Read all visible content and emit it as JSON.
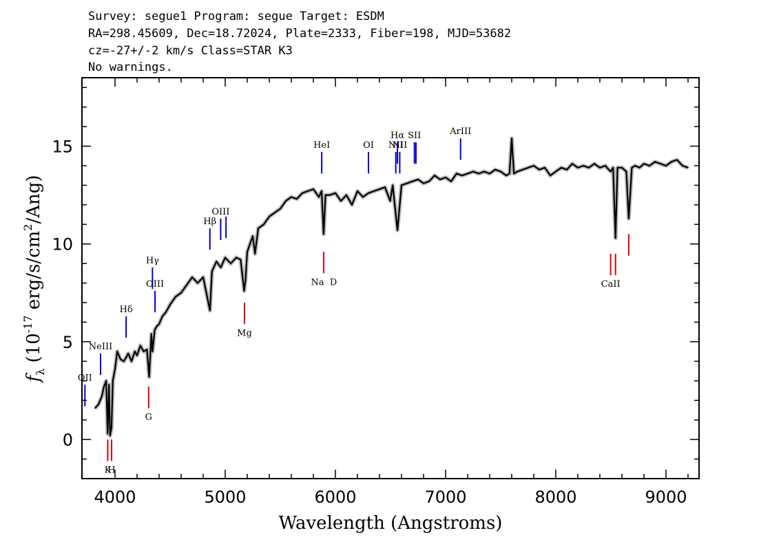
{
  "header": {
    "line1": "Survey: segue1 Program: segue Target: ESDM",
    "line2": "RA=298.45609, Dec=18.72024, Plate=2333, Fiber=198, MJD=53682",
    "line3": "cz=-27+/-2 km/s Class=STAR K3",
    "line4": "No warnings."
  },
  "colors": {
    "emission": "#0000cc",
    "absorption": "#dd0000",
    "flux": "#000000",
    "error_band": "#b8b8b8",
    "sky_line": "#000000"
  },
  "chart_data": {
    "type": "line",
    "title": "",
    "xlabel": "Wavelength (Angstroms)",
    "ylabel": "f_λ (10^-17 erg/s/cm^2/Ang)",
    "xlim": [
      3700,
      9300
    ],
    "ylim": [
      -2,
      18.5
    ],
    "xticks": [
      4000,
      5000,
      6000,
      7000,
      8000,
      9000
    ],
    "yticks": [
      0,
      5,
      10,
      15
    ],
    "grid": false,
    "legend": "none",
    "series": [
      {
        "x": [
          3820,
          3850,
          3880,
          3900,
          3920,
          3933,
          3945,
          3955,
          3968,
          3980,
          4000,
          4020,
          4050,
          4080,
          4101,
          4120,
          4150,
          4180,
          4200,
          4230,
          4260,
          4290,
          4310,
          4330,
          4340,
          4360,
          4380,
          4400,
          4430,
          4460,
          4500,
          4550,
          4600,
          4650,
          4700,
          4750,
          4800,
          4861,
          4880,
          4920,
          4960,
          5000,
          5050,
          5100,
          5140,
          5172,
          5183,
          5200,
          5250,
          5270,
          5300,
          5350,
          5400,
          5450,
          5500,
          5550,
          5600,
          5650,
          5700,
          5750,
          5800,
          5850,
          5875,
          5893,
          5910,
          5950,
          6000,
          6050,
          6100,
          6150,
          6200,
          6250,
          6300,
          6350,
          6400,
          6450,
          6497,
          6520,
          6563,
          6600,
          6650,
          6700,
          6750,
          6800,
          6850,
          6900,
          6950,
          7000,
          7050,
          7100,
          7150,
          7200,
          7250,
          7300,
          7350,
          7400,
          7450,
          7500,
          7550,
          7580,
          7600,
          7620,
          7650,
          7700,
          7750,
          7800,
          7850,
          7900,
          7950,
          8000,
          8050,
          8100,
          8150,
          8200,
          8250,
          8300,
          8350,
          8400,
          8450,
          8480,
          8498,
          8520,
          8542,
          8560,
          8600,
          8640,
          8662,
          8690,
          8720,
          8760,
          8800,
          8850,
          8900,
          8950,
          9000,
          9050,
          9100,
          9150,
          9200
        ],
        "values": [
          1.6,
          1.8,
          2.2,
          2.7,
          3.0,
          0.3,
          2.8,
          0.2,
          0.6,
          3.0,
          3.6,
          4.5,
          4.1,
          4.0,
          4.2,
          4.4,
          4.0,
          4.5,
          4.3,
          4.8,
          4.5,
          4.6,
          3.2,
          5.4,
          4.5,
          5.6,
          5.8,
          5.9,
          6.3,
          6.5,
          6.9,
          7.3,
          7.5,
          7.9,
          8.3,
          8.0,
          8.3,
          6.6,
          8.6,
          9.1,
          8.8,
          9.3,
          9.0,
          9.3,
          9.2,
          7.6,
          8.1,
          9.6,
          10.4,
          9.5,
          10.8,
          11.0,
          11.4,
          11.6,
          11.8,
          12.2,
          12.4,
          12.3,
          12.6,
          12.7,
          12.8,
          12.4,
          12.7,
          10.5,
          12.5,
          12.5,
          12.6,
          12.2,
          12.5,
          12.0,
          12.7,
          12.4,
          12.6,
          12.7,
          12.8,
          12.9,
          12.2,
          13.0,
          10.7,
          13.0,
          13.1,
          13.2,
          13.3,
          13.1,
          13.2,
          13.5,
          13.3,
          13.4,
          13.2,
          13.6,
          13.5,
          13.6,
          13.7,
          13.6,
          13.7,
          13.6,
          13.8,
          13.7,
          13.5,
          13.6,
          15.4,
          13.6,
          13.7,
          13.8,
          13.9,
          14.0,
          13.8,
          13.9,
          13.5,
          13.7,
          13.9,
          13.8,
          14.1,
          13.9,
          14.0,
          13.9,
          14.1,
          13.9,
          14.0,
          13.8,
          13.7,
          13.9,
          10.3,
          13.9,
          13.9,
          13.7,
          11.3,
          13.9,
          14.0,
          13.9,
          14.1,
          14.0,
          14.2,
          14.1,
          14.0,
          14.2,
          14.3,
          14.0,
          13.9
        ]
      }
    ],
    "emission_lines": [
      {
        "label": "OII",
        "wavelength": 3727,
        "y_bottom": 1.7,
        "y_top": 2.8
      },
      {
        "label": "NeIII",
        "wavelength": 3869,
        "y_bottom": 3.3,
        "y_top": 4.4
      },
      {
        "label": "Hδ",
        "wavelength": 4101,
        "y_bottom": 5.2,
        "y_top": 6.3
      },
      {
        "label": "Hγ",
        "wavelength": 4340,
        "y_bottom": 7.7,
        "y_top": 8.8
      },
      {
        "label": "OIII",
        "wavelength": 4363,
        "y_bottom": 6.5,
        "y_top": 7.6
      },
      {
        "label": "Hβ",
        "wavelength": 4861,
        "y_bottom": 9.7,
        "y_top": 10.8
      },
      {
        "label": "OIII",
        "wavelength": 4959,
        "y_bottom": 10.2,
        "y_top": 11.3
      },
      {
        "label": "",
        "wavelength": 5007,
        "y_bottom": 10.3,
        "y_top": 11.4
      },
      {
        "label": "HeI",
        "wavelength": 5876,
        "y_bottom": 13.6,
        "y_top": 14.7
      },
      {
        "label": "OI",
        "wavelength": 6300,
        "y_bottom": 13.6,
        "y_top": 14.7
      },
      {
        "label": "NII",
        "wavelength": 6548,
        "y_bottom": 13.6,
        "y_top": 14.7
      },
      {
        "label": "Hα",
        "wavelength": 6563,
        "y_bottom": 14.1,
        "y_top": 15.2
      },
      {
        "label": "NII",
        "wavelength": 6584,
        "y_bottom": 13.6,
        "y_top": 14.7
      },
      {
        "label": "SII",
        "wavelength": 6717,
        "y_bottom": 14.1,
        "y_top": 15.2
      },
      {
        "label": "",
        "wavelength": 6731,
        "y_bottom": 14.1,
        "y_top": 15.2
      },
      {
        "label": "ArIII",
        "wavelength": 7136,
        "y_bottom": 14.3,
        "y_top": 15.4
      }
    ],
    "absorption_lines": [
      {
        "label": "K",
        "wavelength": 3934,
        "y_top": -0.0,
        "y_bottom": -1.1
      },
      {
        "label": "H",
        "wavelength": 3969,
        "y_top": -0.0,
        "y_bottom": -1.1
      },
      {
        "label": "G",
        "wavelength": 4305,
        "y_top": 2.7,
        "y_bottom": 1.6
      },
      {
        "label": "Mg",
        "wavelength": 5175,
        "y_top": 7.0,
        "y_bottom": 5.9
      },
      {
        "label": "Na",
        "wavelength": 5894,
        "y_top": 9.6,
        "y_bottom": 8.5
      },
      {
        "label": "CaII",
        "wavelength": 8498,
        "y_top": 9.5,
        "y_bottom": 8.4
      },
      {
        "label": "",
        "wavelength": 8542,
        "y_top": 9.5,
        "y_bottom": 8.4
      },
      {
        "label": "",
        "wavelength": 8662,
        "y_top": 10.5,
        "y_bottom": 9.4
      }
    ],
    "absorption_text": {
      "na": "Na",
      "d": "D"
    }
  }
}
